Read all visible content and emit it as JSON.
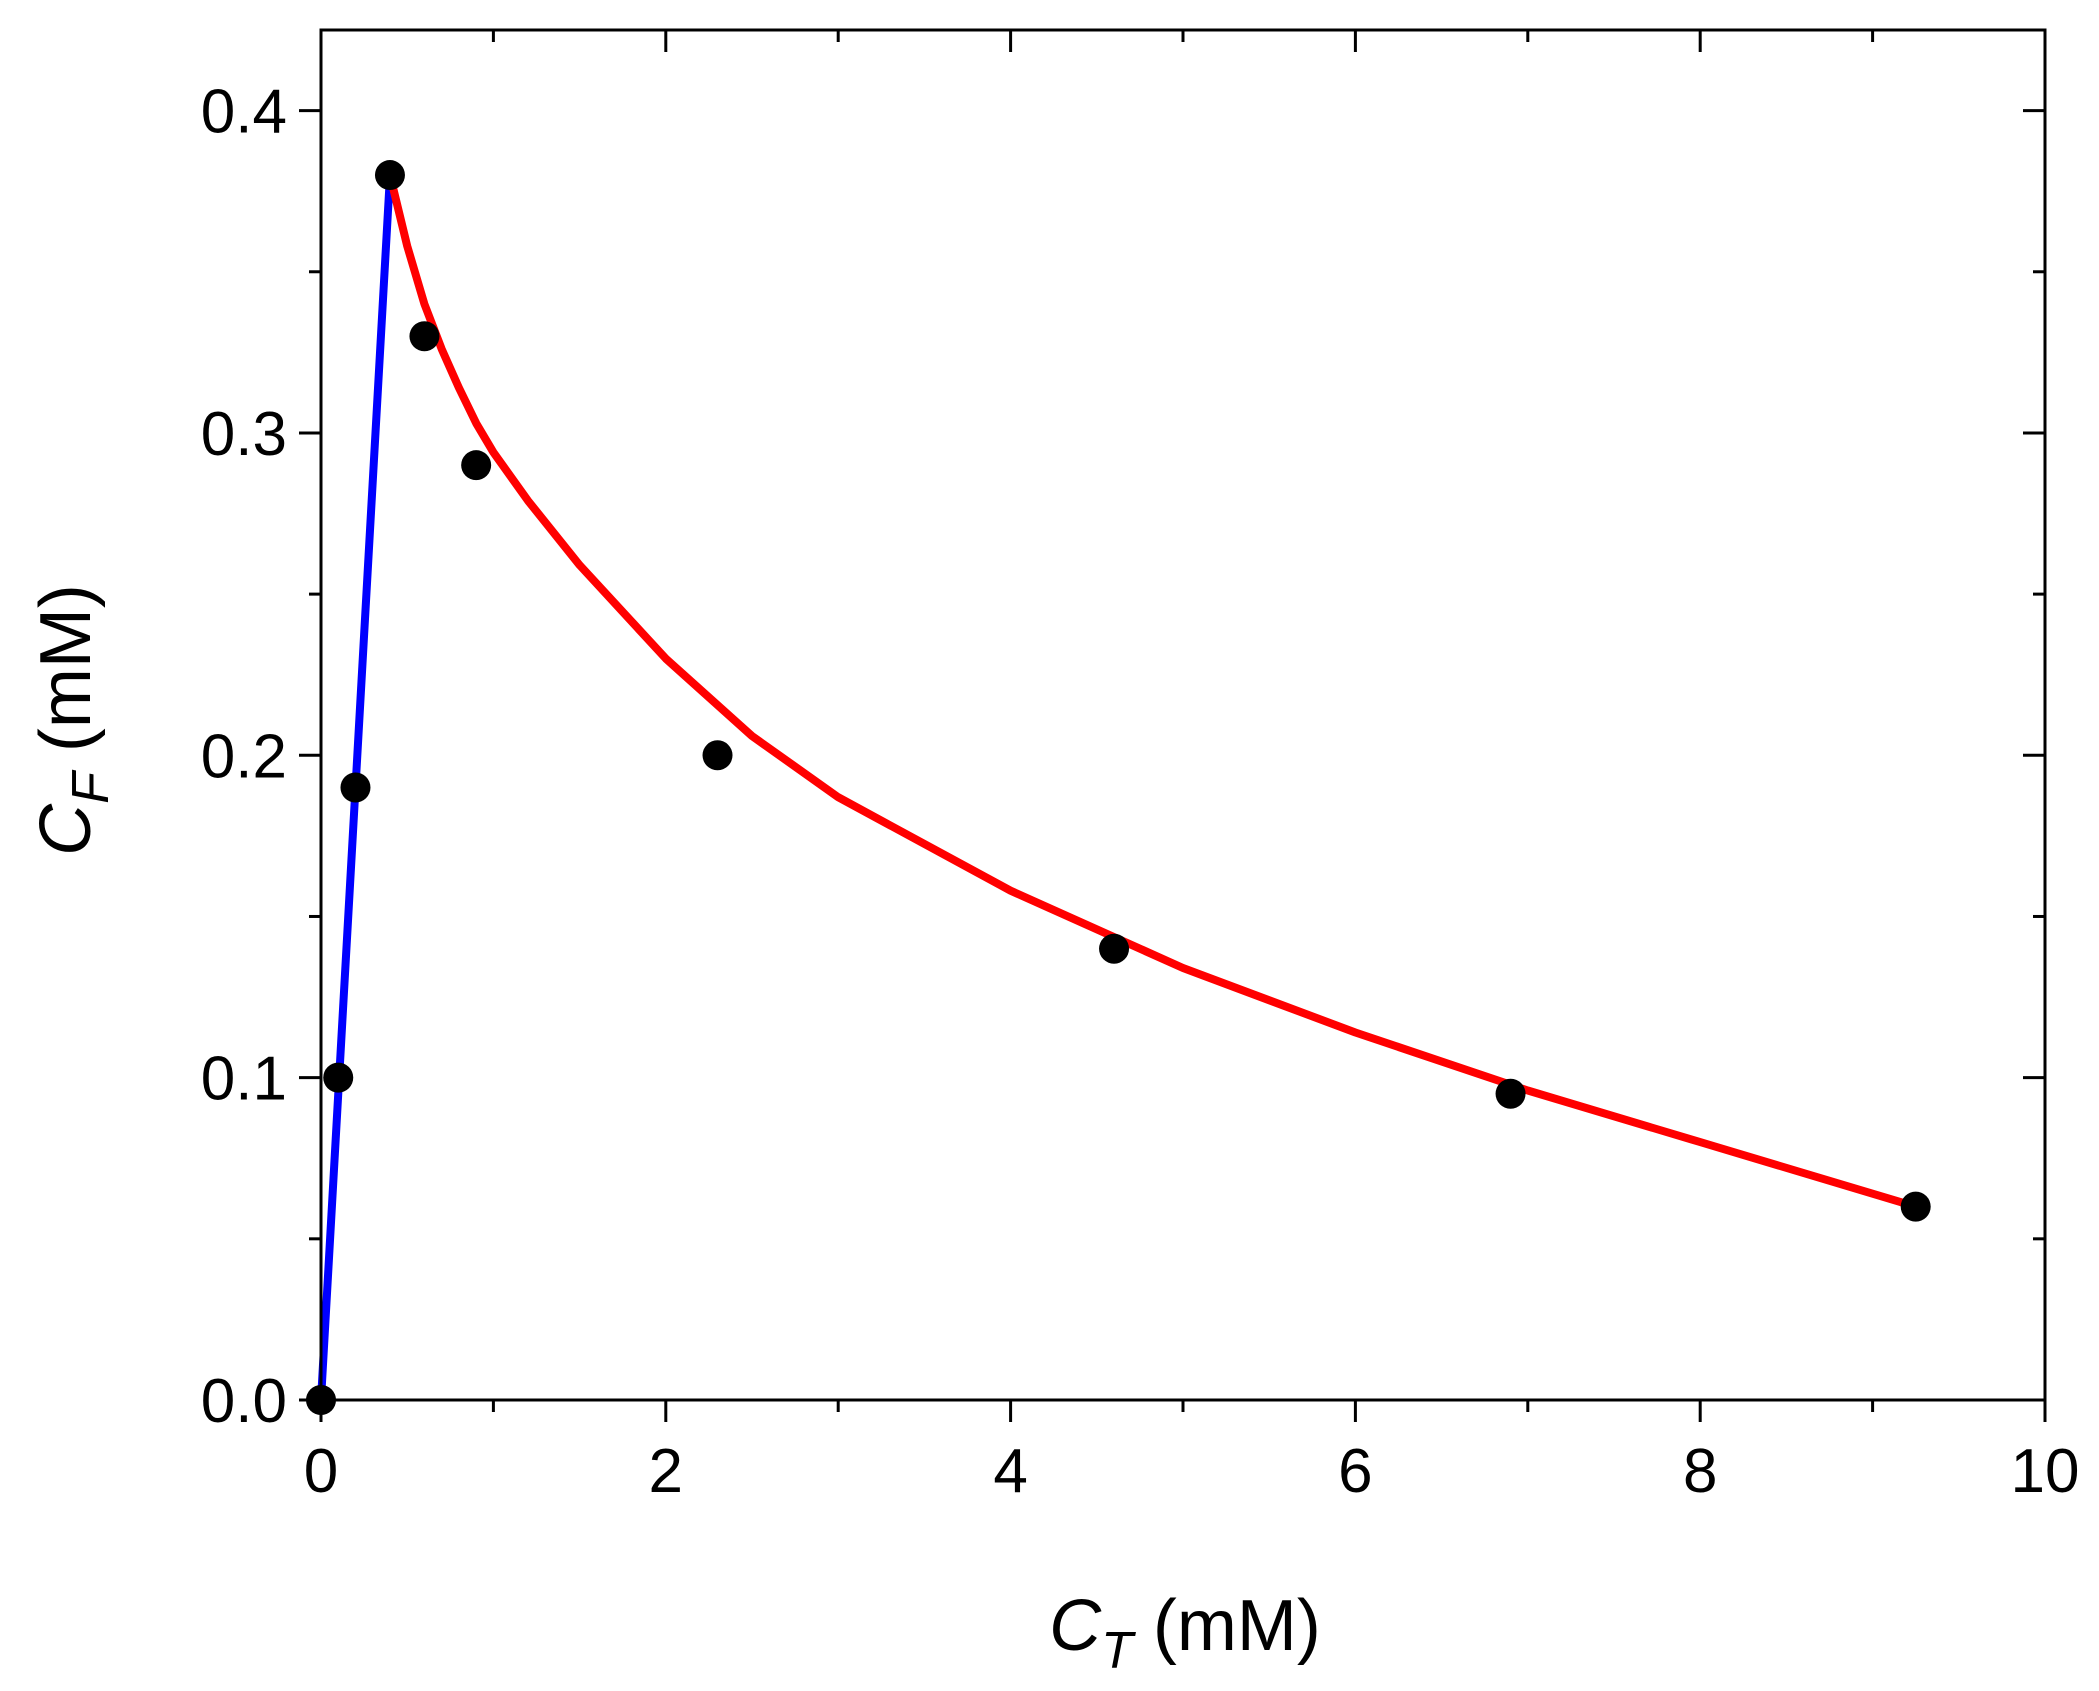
{
  "chart_data": {
    "type": "scatter",
    "xlabel": {
      "symbol": "C",
      "sub": "T",
      "unit": " (mM)"
    },
    "ylabel": {
      "symbol": "C",
      "sub": "F",
      "unit": " (mM)"
    },
    "xlim": [
      0,
      10
    ],
    "ylim": [
      0,
      0.425
    ],
    "xticks": [
      "0",
      "2",
      "4",
      "6",
      "8",
      "10"
    ],
    "yticks": [
      "0.0",
      "0.1",
      "0.2",
      "0.3",
      "0.4"
    ],
    "grid": false,
    "legend": "none",
    "series": [
      {
        "kind": "points",
        "color": "#000000",
        "x": [
          0.0,
          0.1,
          0.2,
          0.4,
          0.6,
          0.9,
          2.3,
          4.6,
          6.9,
          9.25
        ],
        "y": [
          0.0,
          0.1,
          0.19,
          0.38,
          0.33,
          0.29,
          0.2,
          0.14,
          0.095,
          0.06
        ]
      },
      {
        "kind": "line",
        "color": "#0000ff",
        "x": [
          0.0,
          0.4
        ],
        "y": [
          0.0,
          0.38
        ]
      },
      {
        "kind": "line",
        "color": "#ff0000",
        "x": [
          0.4,
          0.5,
          0.6,
          0.7,
          0.8,
          0.9,
          1.0,
          1.2,
          1.5,
          2.0,
          2.5,
          3.0,
          4.0,
          5.0,
          6.0,
          7.0,
          8.0,
          9.25
        ],
        "y": [
          0.38,
          0.358,
          0.34,
          0.326,
          0.314,
          0.303,
          0.294,
          0.279,
          0.259,
          0.23,
          0.206,
          0.187,
          0.158,
          0.134,
          0.114,
          0.096,
          0.08,
          0.06
        ]
      }
    ]
  }
}
